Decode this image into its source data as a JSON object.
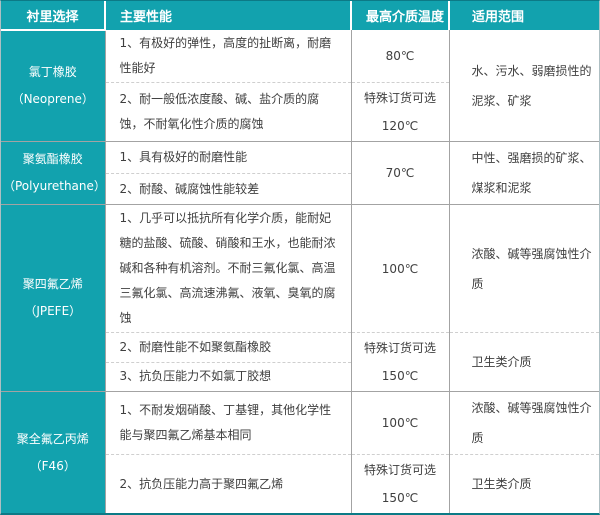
{
  "colors": {
    "header_teal": "#12a2ae",
    "accent_dark_teal": "#0c7a86",
    "border_gray": "#a3a3a3",
    "body_text": "#3f3f3f"
  },
  "header": {
    "lining": "衬里选择",
    "performance": "主要性能",
    "max_temp": "最高介质温度",
    "range": "适用范围"
  },
  "materials": [
    {
      "name": "氯丁橡胶",
      "alias": "（Neoprene）",
      "perf1": "1、有极好的弹性，高度的扯断离，耐磨性能好",
      "perf2": "2、耐一般低浓度酸、碱、盐介质的腐蚀，不耐氧化性介质的腐蚀",
      "temp1": "80℃",
      "temp2_line1": "特殊订货可选",
      "temp2_line2": "120℃",
      "range_all": "水、污水、弱磨损性的泥浆、矿浆"
    },
    {
      "name": "聚氨酯橡胶",
      "alias": "（Polyurethane）",
      "perf1": "1、具有极好的耐磨性能",
      "perf2": "2、耐酸、碱腐蚀性能较差",
      "temp_all": "70℃",
      "range_all": "中性、强磨损的矿浆、煤浆和泥浆"
    },
    {
      "name": "聚四氟乙烯",
      "alias": "（JPEFE）",
      "perf1": "1、几乎可以抵抗所有化学介质，能耐妃糖的盐酸、硫酸、硝酸和王水，也能耐浓碱和各种有机溶剂。不耐三氟化氯、高温三氟化氯、高流速沸氟、液氧、臭氧的腐蚀",
      "perf2": "2、耐磨性能不如聚氨酯橡胶",
      "perf3": "3、抗负压能力不如氯丁胶想",
      "temp1": "100℃",
      "temp23_line1": "特殊订货可选",
      "temp23_line2": "150℃",
      "range1": "浓酸、碱等强腐蚀性介质",
      "range23": "卫生类介质"
    },
    {
      "name": "聚全氟乙丙烯",
      "alias": "（F46）",
      "perf1": "1、不耐发烟硝酸、丁基锂，其他化学性能与聚四氟乙烯基本相同",
      "perf2": "2、抗负压能力高于聚四氟乙烯",
      "temp1": "100℃",
      "temp2_line1": "特殊订货可选",
      "temp2_line2": "150℃",
      "range1": "浓酸、碱等强腐蚀性介质",
      "range2": "卫生类介质"
    }
  ]
}
